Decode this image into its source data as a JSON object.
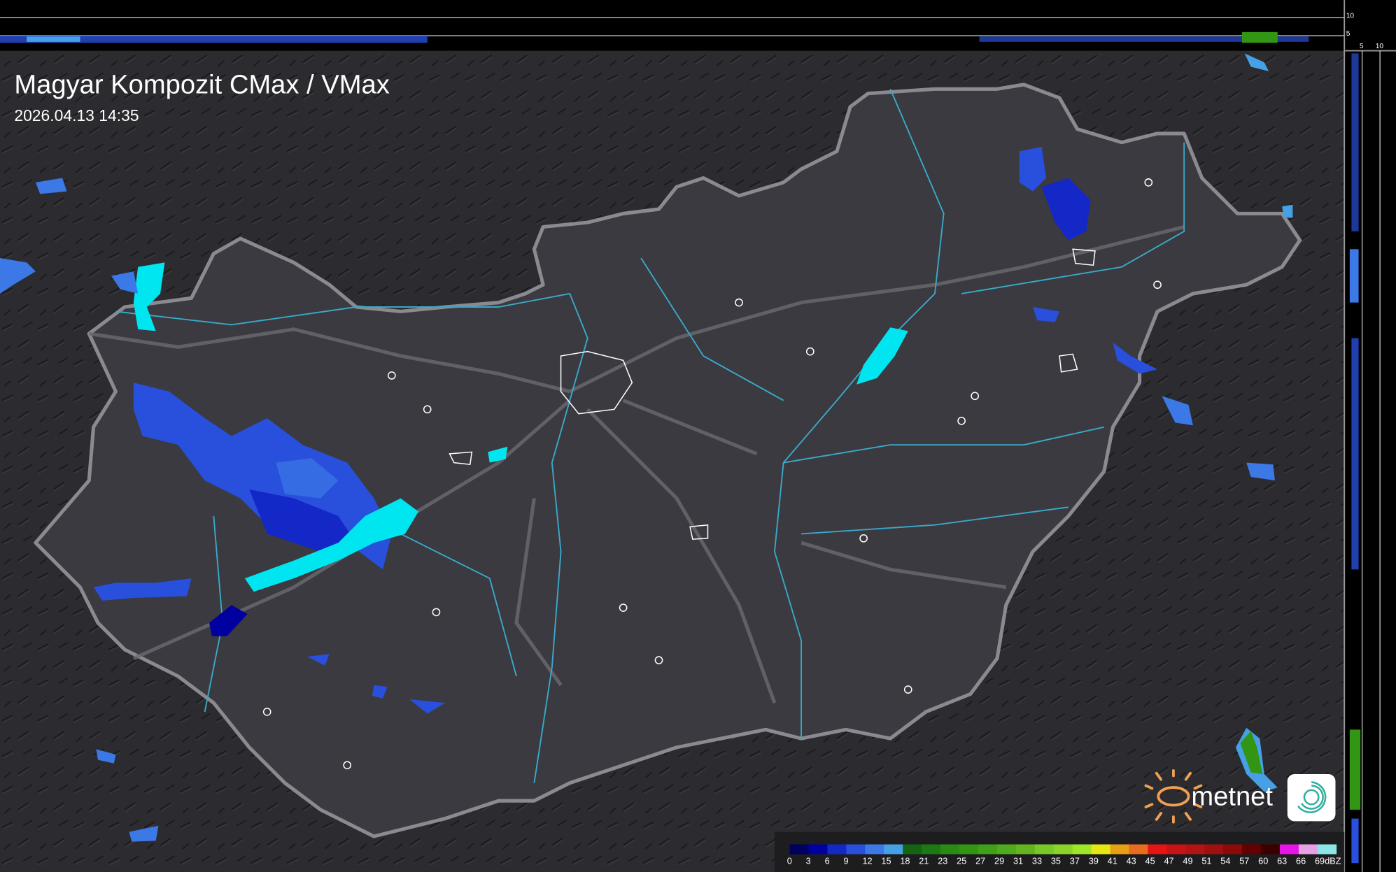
{
  "title": "Magyar Kompozit CMax / VMax",
  "timestamp": "2026.04.13 14:35",
  "logo": {
    "text": "metnet",
    "sun_color": "#f0a050",
    "swirl_color": "#30b0a0"
  },
  "side_profile": {
    "top_ticks": [
      "10",
      "5"
    ],
    "right_ticks": [
      "5",
      "10"
    ]
  },
  "legend": {
    "unit": "dBZ",
    "labels": [
      "0",
      "3",
      "6",
      "9",
      "12",
      "15",
      "18",
      "21",
      "23",
      "25",
      "27",
      "29",
      "31",
      "33",
      "35",
      "37",
      "39",
      "41",
      "43",
      "45",
      "47",
      "49",
      "51",
      "54",
      "57",
      "60",
      "63",
      "66",
      "69"
    ],
    "colors": [
      "#00005e",
      "#0000a0",
      "#1428c8",
      "#2850dc",
      "#3c78e6",
      "#46a0e6",
      "#146414",
      "#1e7814",
      "#288c14",
      "#329614",
      "#40a018",
      "#50aa1e",
      "#64b420",
      "#78c828",
      "#8cd228",
      "#a0e628",
      "#e6e614",
      "#e6a014",
      "#e66e1e",
      "#e61414",
      "#c81414",
      "#b41414",
      "#a01010",
      "#8c0a0a",
      "#640000",
      "#3c0000",
      "#e614e6",
      "#e6a0e6",
      "#8ce6e6"
    ]
  },
  "map": {
    "background": "#2a2a2e",
    "country_fill": "#3a3a40",
    "border_color": "#8a8a90",
    "river_color": "#3aa8c8"
  }
}
